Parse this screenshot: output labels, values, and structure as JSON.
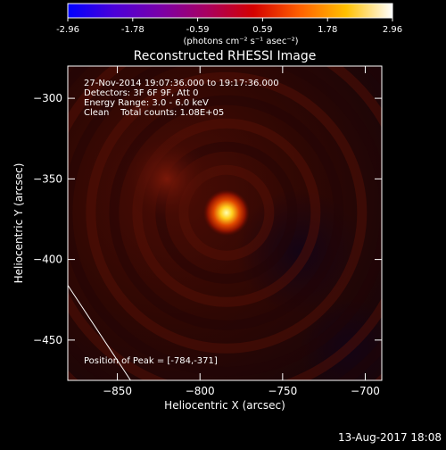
{
  "colorbar": {
    "ticks": [
      "-2.96",
      "-1.78",
      "-0.59",
      "0.59",
      "1.78",
      "2.96"
    ],
    "unit": "(photons cm⁻² s⁻¹ asec⁻²)",
    "colors": [
      "#0000ff",
      "#4b00d8",
      "#7a00a8",
      "#a80060",
      "#d40000",
      "#ff6000",
      "#ffc000",
      "#ffffff"
    ]
  },
  "chart_data": {
    "type": "heatmap",
    "title": "Reconstructed RHESSI Image",
    "xlabel": "Heliocentric X (arcsec)",
    "ylabel": "Heliocentric Y (arcsec)",
    "xlim": [
      -880,
      -690
    ],
    "ylim": [
      -475,
      -280
    ],
    "x_ticks": [
      -850,
      -800,
      -750,
      -700
    ],
    "y_ticks": [
      -300,
      -350,
      -400,
      -450
    ],
    "peak": {
      "x": -784,
      "y": -371
    },
    "secondary_blob": {
      "x": -820,
      "y": -350
    },
    "limb_line": [
      [
        -880,
        -416
      ],
      [
        -842,
        -475
      ]
    ],
    "annotations": {
      "line1": "27-Nov-2014 19:07:36.000 to 19:17:36.000",
      "line2": "Detectors: 3F 6F 9F, Att 0",
      "line3": "Energy Range: 3.0 - 6.0 keV",
      "line4": "Clean    Total counts: 1.08E+05",
      "peak_label": "Position of Peak = [-784,-371]"
    }
  },
  "footer": {
    "timestamp": "13-Aug-2017 18:08"
  }
}
